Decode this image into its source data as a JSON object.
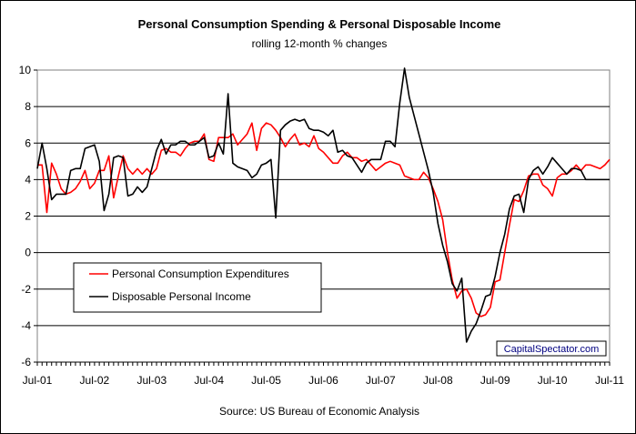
{
  "chart_data": {
    "type": "line",
    "title": "Personal Consumption Spending & Personal Disposable Income",
    "subtitle": "rolling 12-month % changes",
    "source": "Source: US Bureau of Economic Analysis",
    "watermark": "CapitalSpectator.com",
    "xlabel": "",
    "ylabel": "",
    "ylim": [
      -6,
      10
    ],
    "yticks": [
      -6,
      -4,
      -2,
      0,
      2,
      4,
      6,
      8,
      10
    ],
    "grid": true,
    "legend_position": "lower-left",
    "x_tick_labels": [
      "Jul-01",
      "Jul-02",
      "Jul-03",
      "Jul-04",
      "Jul-05",
      "Jul-06",
      "Jul-07",
      "Jul-08",
      "Jul-09",
      "Jul-10",
      "Jul-11"
    ],
    "series": [
      {
        "name": "Personal Consumption Expenditures",
        "color": "#ff0000",
        "points": [
          [
            "2001-07",
            4.8
          ],
          [
            "2001-08",
            4.8
          ],
          [
            "2001-09",
            2.2
          ],
          [
            "2001-10",
            4.9
          ],
          [
            "2001-11",
            4.3
          ],
          [
            "2001-12",
            3.5
          ],
          [
            "2002-01",
            3.2
          ],
          [
            "2002-02",
            3.3
          ],
          [
            "2002-03",
            3.5
          ],
          [
            "2002-04",
            3.9
          ],
          [
            "2002-05",
            4.5
          ],
          [
            "2002-06",
            3.5
          ],
          [
            "2002-07",
            3.8
          ],
          [
            "2002-08",
            4.5
          ],
          [
            "2002-09",
            4.5
          ],
          [
            "2002-10",
            5.3
          ],
          [
            "2002-11",
            3.0
          ],
          [
            "2002-12",
            4.2
          ],
          [
            "2003-01",
            5.3
          ],
          [
            "2003-02",
            4.6
          ],
          [
            "2003-03",
            4.3
          ],
          [
            "2003-04",
            4.6
          ],
          [
            "2003-05",
            4.3
          ],
          [
            "2003-06",
            4.6
          ],
          [
            "2003-07",
            4.3
          ],
          [
            "2003-08",
            4.6
          ],
          [
            "2003-09",
            5.6
          ],
          [
            "2003-10",
            5.7
          ],
          [
            "2003-11",
            5.5
          ],
          [
            "2003-12",
            5.5
          ],
          [
            "2004-01",
            5.3
          ],
          [
            "2004-02",
            5.7
          ],
          [
            "2004-03",
            6.0
          ],
          [
            "2004-04",
            6.1
          ],
          [
            "2004-05",
            6.1
          ],
          [
            "2004-06",
            6.5
          ],
          [
            "2004-07",
            5.1
          ],
          [
            "2004-08",
            5.0
          ],
          [
            "2004-09",
            6.3
          ],
          [
            "2004-10",
            6.3
          ],
          [
            "2004-11",
            6.3
          ],
          [
            "2004-12",
            6.5
          ],
          [
            "2005-01",
            5.9
          ],
          [
            "2005-02",
            6.2
          ],
          [
            "2005-03",
            6.5
          ],
          [
            "2005-04",
            7.1
          ],
          [
            "2005-05",
            5.6
          ],
          [
            "2005-06",
            6.8
          ],
          [
            "2005-07",
            7.1
          ],
          [
            "2005-08",
            7.0
          ],
          [
            "2005-09",
            6.7
          ],
          [
            "2005-10",
            6.3
          ],
          [
            "2005-11",
            5.8
          ],
          [
            "2005-12",
            6.2
          ],
          [
            "2006-01",
            6.5
          ],
          [
            "2006-02",
            5.9
          ],
          [
            "2006-03",
            6.0
          ],
          [
            "2006-04",
            5.8
          ],
          [
            "2006-05",
            6.4
          ],
          [
            "2006-06",
            5.7
          ],
          [
            "2006-07",
            5.5
          ],
          [
            "2006-08",
            5.2
          ],
          [
            "2006-09",
            4.9
          ],
          [
            "2006-10",
            4.9
          ],
          [
            "2006-11",
            5.3
          ],
          [
            "2006-12",
            5.5
          ],
          [
            "2007-01",
            5.2
          ],
          [
            "2007-02",
            5.2
          ],
          [
            "2007-03",
            5.0
          ],
          [
            "2007-04",
            5.1
          ],
          [
            "2007-05",
            4.8
          ],
          [
            "2007-06",
            4.5
          ],
          [
            "2007-07",
            4.7
          ],
          [
            "2007-08",
            4.9
          ],
          [
            "2007-09",
            5.0
          ],
          [
            "2007-10",
            4.9
          ],
          [
            "2007-11",
            4.8
          ],
          [
            "2007-12",
            4.2
          ],
          [
            "2008-01",
            4.1
          ],
          [
            "2008-02",
            4.0
          ],
          [
            "2008-03",
            4.0
          ],
          [
            "2008-04",
            4.4
          ],
          [
            "2008-05",
            4.1
          ],
          [
            "2008-06",
            3.5
          ],
          [
            "2008-07",
            2.8
          ],
          [
            "2008-08",
            1.8
          ],
          [
            "2008-09",
            0.0
          ],
          [
            "2008-10",
            -1.5
          ],
          [
            "2008-11",
            -2.5
          ],
          [
            "2008-12",
            -2.1
          ],
          [
            "2009-01",
            -2.0
          ],
          [
            "2009-02",
            -2.5
          ],
          [
            "2009-03",
            -3.3
          ],
          [
            "2009-04",
            -3.5
          ],
          [
            "2009-05",
            -3.4
          ],
          [
            "2009-06",
            -3.0
          ],
          [
            "2009-07",
            -1.6
          ],
          [
            "2009-08",
            -1.5
          ],
          [
            "2009-09",
            0.0
          ],
          [
            "2009-10",
            1.5
          ],
          [
            "2009-11",
            2.9
          ],
          [
            "2009-12",
            2.8
          ],
          [
            "2010-01",
            3.4
          ],
          [
            "2010-02",
            4.2
          ],
          [
            "2010-03",
            4.3
          ],
          [
            "2010-04",
            4.3
          ],
          [
            "2010-05",
            3.7
          ],
          [
            "2010-06",
            3.5
          ],
          [
            "2010-07",
            3.1
          ],
          [
            "2010-08",
            4.1
          ],
          [
            "2010-09",
            4.3
          ],
          [
            "2010-10",
            4.3
          ],
          [
            "2010-11",
            4.5
          ],
          [
            "2010-12",
            4.8
          ],
          [
            "2011-01",
            4.5
          ],
          [
            "2011-02",
            4.8
          ],
          [
            "2011-03",
            4.8
          ],
          [
            "2011-04",
            4.7
          ],
          [
            "2011-05",
            4.6
          ],
          [
            "2011-06",
            4.8
          ],
          [
            "2011-07",
            5.1
          ]
        ]
      },
      {
        "name": "Disposable Personal Income",
        "color": "#000000",
        "points": [
          [
            "2001-07",
            4.6
          ],
          [
            "2001-08",
            6.0
          ],
          [
            "2001-09",
            4.6
          ],
          [
            "2001-10",
            2.9
          ],
          [
            "2001-11",
            3.2
          ],
          [
            "2001-12",
            3.2
          ],
          [
            "2002-01",
            3.2
          ],
          [
            "2002-02",
            4.5
          ],
          [
            "2002-03",
            4.6
          ],
          [
            "2002-04",
            4.6
          ],
          [
            "2002-05",
            5.7
          ],
          [
            "2002-06",
            5.8
          ],
          [
            "2002-07",
            5.9
          ],
          [
            "2002-08",
            5.0
          ],
          [
            "2002-09",
            2.3
          ],
          [
            "2002-10",
            3.2
          ],
          [
            "2002-11",
            5.2
          ],
          [
            "2002-12",
            5.3
          ],
          [
            "2003-01",
            5.2
          ],
          [
            "2003-02",
            3.1
          ],
          [
            "2003-03",
            3.2
          ],
          [
            "2003-04",
            3.6
          ],
          [
            "2003-05",
            3.3
          ],
          [
            "2003-06",
            3.6
          ],
          [
            "2003-07",
            4.6
          ],
          [
            "2003-08",
            5.6
          ],
          [
            "2003-09",
            6.2
          ],
          [
            "2003-10",
            5.4
          ],
          [
            "2003-11",
            5.9
          ],
          [
            "2003-12",
            5.9
          ],
          [
            "2004-01",
            6.1
          ],
          [
            "2004-02",
            6.1
          ],
          [
            "2004-03",
            5.9
          ],
          [
            "2004-04",
            5.9
          ],
          [
            "2004-05",
            6.1
          ],
          [
            "2004-06",
            6.3
          ],
          [
            "2004-07",
            5.2
          ],
          [
            "2004-08",
            5.3
          ],
          [
            "2004-09",
            6.0
          ],
          [
            "2004-10",
            5.4
          ],
          [
            "2004-11",
            8.7
          ],
          [
            "2004-12",
            4.9
          ],
          [
            "2005-01",
            4.7
          ],
          [
            "2005-02",
            4.6
          ],
          [
            "2005-03",
            4.5
          ],
          [
            "2005-04",
            4.1
          ],
          [
            "2005-05",
            4.3
          ],
          [
            "2005-06",
            4.8
          ],
          [
            "2005-07",
            4.9
          ],
          [
            "2005-08",
            5.1
          ],
          [
            "2005-09",
            1.9
          ],
          [
            "2005-10",
            6.7
          ],
          [
            "2005-11",
            7.0
          ],
          [
            "2005-12",
            7.2
          ],
          [
            "2006-01",
            7.3
          ],
          [
            "2006-02",
            7.2
          ],
          [
            "2006-03",
            7.3
          ],
          [
            "2006-04",
            6.8
          ],
          [
            "2006-05",
            6.7
          ],
          [
            "2006-06",
            6.7
          ],
          [
            "2006-07",
            6.6
          ],
          [
            "2006-08",
            6.4
          ],
          [
            "2006-09",
            6.7
          ],
          [
            "2006-10",
            5.5
          ],
          [
            "2006-11",
            5.6
          ],
          [
            "2006-12",
            5.3
          ],
          [
            "2007-01",
            5.2
          ],
          [
            "2007-02",
            4.8
          ],
          [
            "2007-03",
            4.4
          ],
          [
            "2007-04",
            4.9
          ],
          [
            "2007-05",
            5.1
          ],
          [
            "2007-06",
            5.1
          ],
          [
            "2007-07",
            5.1
          ],
          [
            "2007-08",
            6.1
          ],
          [
            "2007-09",
            6.1
          ],
          [
            "2007-10",
            5.8
          ],
          [
            "2007-11",
            8.2
          ],
          [
            "2007-12",
            10.1
          ],
          [
            "2008-01",
            8.5
          ],
          [
            "2008-02",
            7.5
          ],
          [
            "2008-03",
            6.5
          ],
          [
            "2008-04",
            5.5
          ],
          [
            "2008-05",
            4.5
          ],
          [
            "2008-06",
            3.3
          ],
          [
            "2008-07",
            1.6
          ],
          [
            "2008-08",
            0.4
          ],
          [
            "2008-09",
            -0.5
          ],
          [
            "2008-10",
            -1.7
          ],
          [
            "2008-11",
            -2.1
          ],
          [
            "2008-12",
            -1.4
          ],
          [
            "2009-01",
            -4.9
          ],
          [
            "2009-02",
            -4.3
          ],
          [
            "2009-03",
            -3.9
          ],
          [
            "2009-04",
            -3.2
          ],
          [
            "2009-05",
            -2.4
          ],
          [
            "2009-06",
            -2.3
          ],
          [
            "2009-07",
            -1.3
          ],
          [
            "2009-08",
            0.0
          ],
          [
            "2009-09",
            1.0
          ],
          [
            "2009-10",
            2.4
          ],
          [
            "2009-11",
            3.1
          ],
          [
            "2009-12",
            3.2
          ],
          [
            "2010-01",
            2.2
          ],
          [
            "2010-02",
            4.0
          ],
          [
            "2010-03",
            4.5
          ],
          [
            "2010-04",
            4.7
          ],
          [
            "2010-05",
            4.3
          ],
          [
            "2010-06",
            4.7
          ],
          [
            "2010-07",
            5.2
          ],
          [
            "2010-08",
            4.9
          ],
          [
            "2010-09",
            4.6
          ],
          [
            "2010-10",
            4.3
          ],
          [
            "2010-11",
            4.6
          ],
          [
            "2010-12",
            4.6
          ],
          [
            "2011-01",
            4.5
          ],
          [
            "2011-02",
            4.0
          ],
          [
            "2011-03",
            4.0
          ],
          [
            "2011-04",
            4.0
          ],
          [
            "2011-05",
            4.0
          ],
          [
            "2011-06",
            4.0
          ],
          [
            "2011-07",
            4.0
          ]
        ]
      }
    ]
  }
}
